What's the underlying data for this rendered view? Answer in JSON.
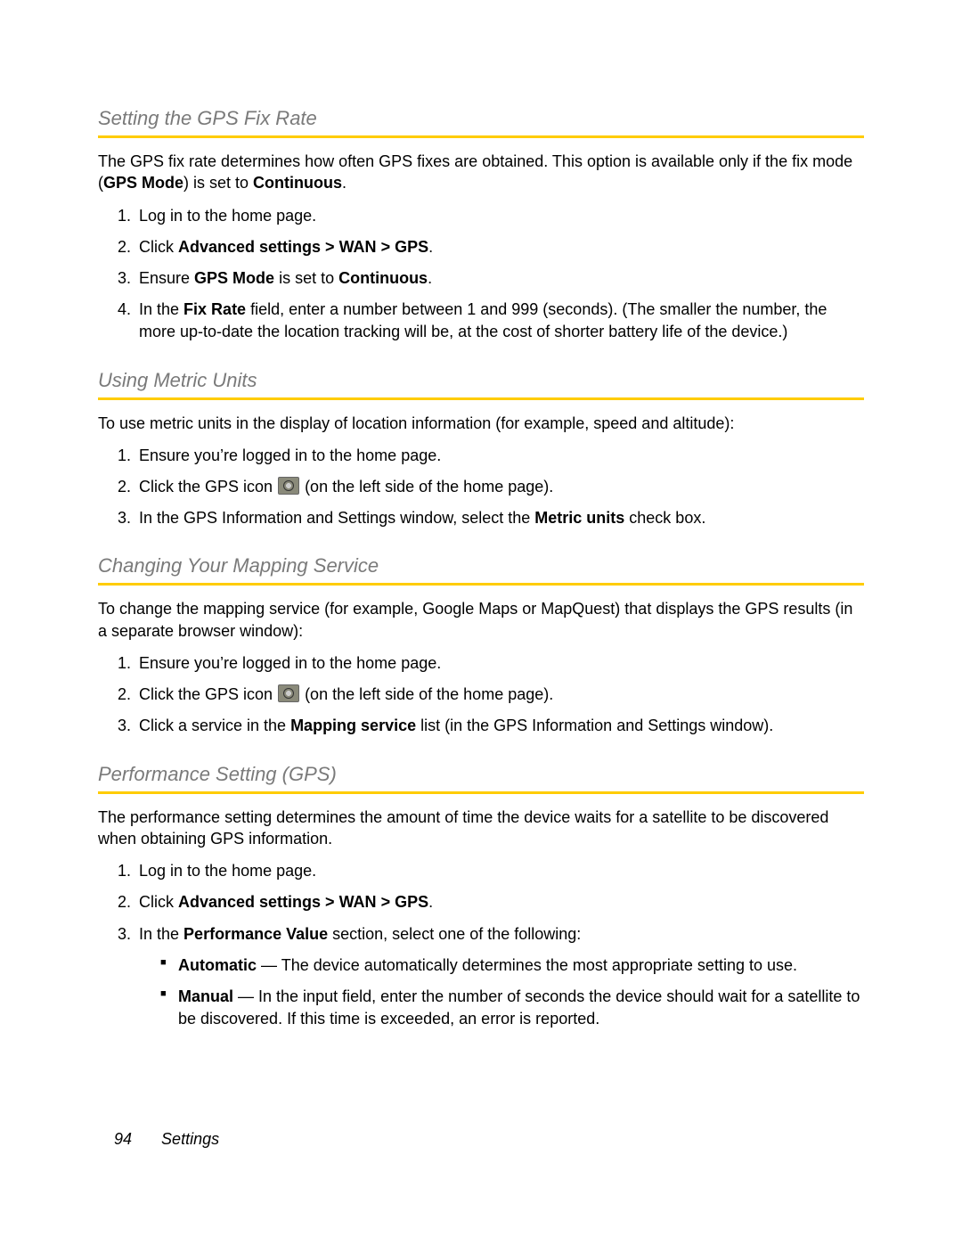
{
  "accent_color": "#ffcc00",
  "heading_color": "#7a7a7a",
  "footer": {
    "page_number": "94",
    "section": "Settings"
  },
  "sec1": {
    "title": "Setting the GPS Fix Rate",
    "intro_a": "The GPS fix rate determines how often GPS fixes are obtained. This option is available only if the fix mode (",
    "intro_b": "GPS Mode",
    "intro_c": ") is set to ",
    "intro_d": "Continuous",
    "intro_e": ".",
    "s1": "Log in to the home page.",
    "s2_a": "Click ",
    "s2_b": "Advanced settings",
    "s2_c": " > ",
    "s2_d": "WAN",
    "s2_e": " > ",
    "s2_f": "GPS",
    "s2_g": ".",
    "s3_a": "Ensure ",
    "s3_b": "GPS Mode",
    "s3_c": " is set to ",
    "s3_d": "Continuous",
    "s3_e": ".",
    "s4_a": "In the ",
    "s4_b": "Fix Rate",
    "s4_c": " field, enter a number between 1 and 999 (seconds). (The smaller the number, the more up-to-date the location tracking will be, at the cost of shorter battery life of the device.)"
  },
  "sec2": {
    "title": "Using Metric Units",
    "intro": "To use metric units in the display of location information (for example, speed and altitude):",
    "s1": "Ensure you’re logged in to the home page.",
    "s2_a": "Click the GPS icon ",
    "s2_b": " (on the left side of the home page).",
    "s3_a": "In the GPS Information and Settings window, select the ",
    "s3_b": "Metric units",
    "s3_c": " check box."
  },
  "sec3": {
    "title": "Changing Your Mapping Service",
    "intro": "To change the mapping service (for example, Google Maps or MapQuest) that displays the GPS results (in a separate browser window):",
    "s1": "Ensure you’re logged in to the home page.",
    "s2_a": "Click the GPS icon ",
    "s2_b": " (on the left side of the home page).",
    "s3_a": "Click a service in the ",
    "s3_b": "Mapping service",
    "s3_c": " list (in the GPS Information and Settings window)."
  },
  "sec4": {
    "title": "Performance Setting (GPS)",
    "intro": "The performance setting determines the amount of time the device waits for a satellite to be discovered when obtaining GPS information.",
    "s1": "Log in to the home page.",
    "s2_a": "Click ",
    "s2_b": "Advanced settings",
    "s2_c": " > ",
    "s2_d": "WAN",
    "s2_e": " > ",
    "s2_f": "GPS",
    "s2_g": ".",
    "s3_a": "In the ",
    "s3_b": "Performance Value",
    "s3_c": " section, select one of the following:",
    "b1_a": "Automatic",
    "b1_b": " — The device automatically determines the most appropriate setting to use.",
    "b2_a": "Manual",
    "b2_b": " — In the input field, enter the number of seconds the device should wait for a satellite to be discovered. If this time is exceeded, an error is reported."
  }
}
